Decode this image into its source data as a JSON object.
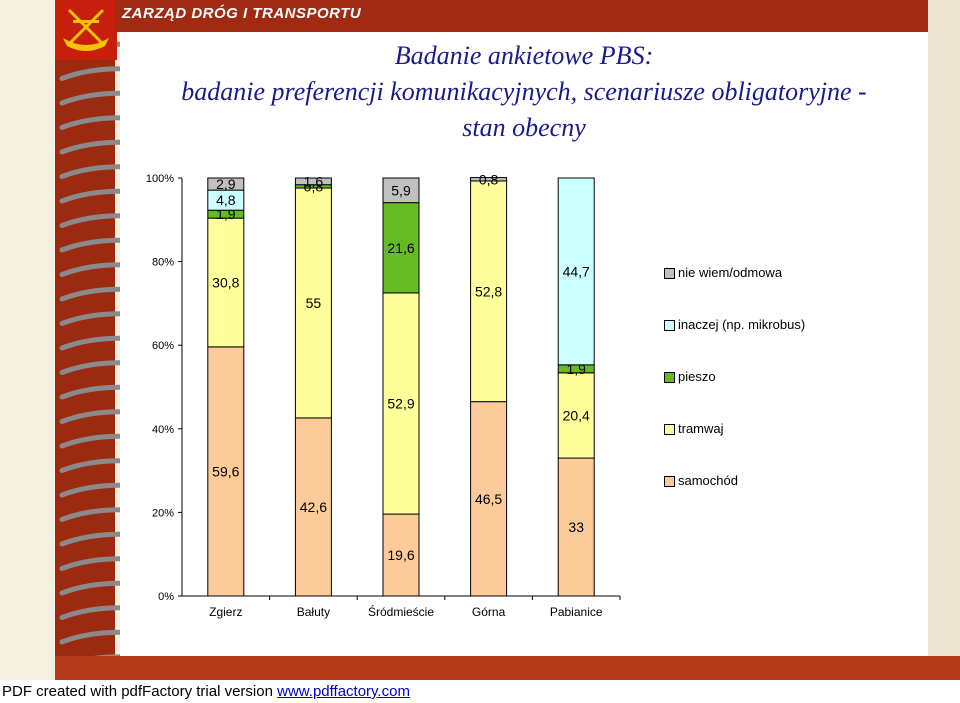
{
  "header": {
    "banner_text": "ZARZĄD  DRÓG  I  TRANSPORTU",
    "title_line1": "Badanie ankietowe PBS:",
    "title_line2": "badanie preferencji komunikacyjnych, scenariusze obligatoryjne -",
    "title_line3": "stan obecny"
  },
  "footer": {
    "text": "PDF created with pdfFactory trial version ",
    "link": "www.pdffactory.com"
  },
  "colors": {
    "samochod": "#fdca9a",
    "tramwaj": "#ffff9c",
    "pieszo": "#66bb22",
    "inaczej": "#ccffff",
    "nie_wiem": "#c0c0c0",
    "banner": "#a02a12",
    "title": "#1a1a8c"
  },
  "chart_data": {
    "type": "bar",
    "stacked": true,
    "normalized_percent": true,
    "categories": [
      "Zgierz",
      "Bałuty",
      "Śródmieście",
      "Górna",
      "Pabianice"
    ],
    "ylim": [
      0,
      100
    ],
    "yticks": [
      "0%",
      "20%",
      "40%",
      "60%",
      "80%",
      "100%"
    ],
    "legend_position": "right",
    "series": [
      {
        "name": "samochód",
        "values": [
          59.6,
          42.6,
          19.6,
          46.5,
          33
        ],
        "labels": [
          "59,6",
          "42,6",
          "19,6",
          "46,5",
          "33"
        ]
      },
      {
        "name": "tramwaj",
        "values": [
          30.8,
          55,
          52.9,
          52.8,
          20.4
        ],
        "labels": [
          "30,8",
          "55",
          "52,9",
          "52,8",
          "20,4"
        ]
      },
      {
        "name": "pieszo",
        "values": [
          1.9,
          0.8,
          21.6,
          0.0,
          1.9
        ],
        "labels": [
          "1,9",
          "0,8",
          "21,6",
          "",
          "1,9"
        ]
      },
      {
        "name": "inaczej (np. mikrobus)",
        "values": [
          4.8,
          0.0,
          0.0,
          0.0,
          44.7
        ],
        "labels": [
          "4,8",
          "",
          "",
          "",
          "44,7"
        ]
      },
      {
        "name": "nie wiem/odmowa",
        "values": [
          2.9,
          1.6,
          5.9,
          0.8,
          0.0
        ],
        "labels": [
          "2,9",
          "1,6",
          "5,9",
          "0,8",
          ""
        ]
      }
    ],
    "legend": [
      "nie wiem/odmowa",
      "inaczej (np. mikrobus)",
      "pieszo",
      "tramwaj",
      "samochód"
    ]
  }
}
